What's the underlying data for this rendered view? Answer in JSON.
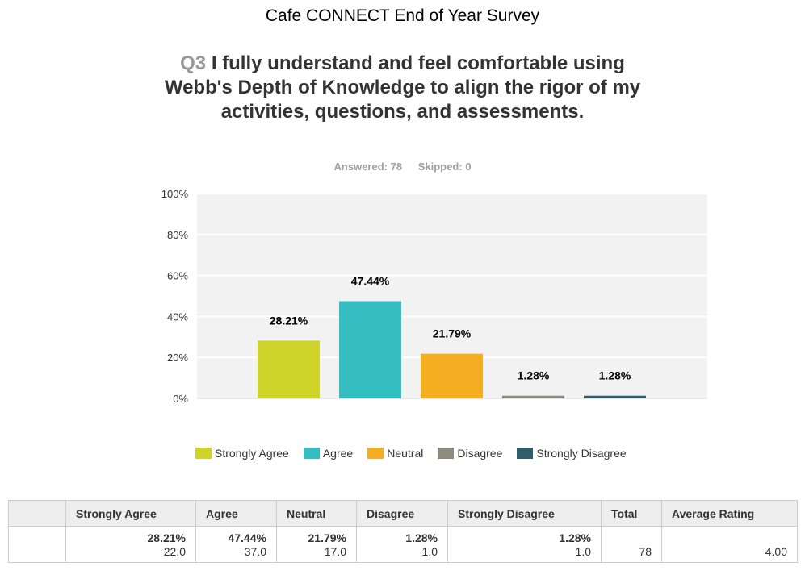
{
  "survey_title": "Cafe CONNECT End of Year Survey",
  "question": {
    "number": "Q3",
    "text": "I fully understand and feel comfortable using Webb's Depth of Knowledge to align the rigor of my activities, questions, and assessments."
  },
  "stats": {
    "answered": "Answered: 78",
    "skipped": "Skipped: 0"
  },
  "chart_data": {
    "type": "bar",
    "title": "",
    "categories": [
      "Strongly Agree",
      "Agree",
      "Neutral",
      "Disagree",
      "Strongly Disagree"
    ],
    "values": [
      28.21,
      47.44,
      21.79,
      1.28,
      1.28
    ],
    "data_labels": [
      "28.21%",
      "47.44%",
      "21.79%",
      "1.28%",
      "1.28%"
    ],
    "colors": [
      "#cfd528",
      "#35bec1",
      "#f5ae22",
      "#8b8c7e",
      "#2f5e6a"
    ],
    "ylim": [
      0,
      100
    ],
    "yticks": [
      "0%",
      "20%",
      "40%",
      "60%",
      "80%",
      "100%"
    ],
    "ytick_values": [
      0,
      20,
      40,
      60,
      80,
      100
    ],
    "xlabel": "",
    "ylabel": "",
    "legend": "bottom",
    "grid": true
  },
  "table": {
    "headers": [
      "Strongly Agree",
      "Agree",
      "Neutral",
      "Disagree",
      "Strongly Disagree",
      "Total",
      "Average Rating"
    ],
    "percents": [
      "28.21%",
      "47.44%",
      "21.79%",
      "1.28%",
      "1.28%"
    ],
    "counts": [
      "22.0",
      "37.0",
      "17.0",
      "1.0",
      "1.0"
    ],
    "total": "78",
    "average_rating": "4.00"
  }
}
